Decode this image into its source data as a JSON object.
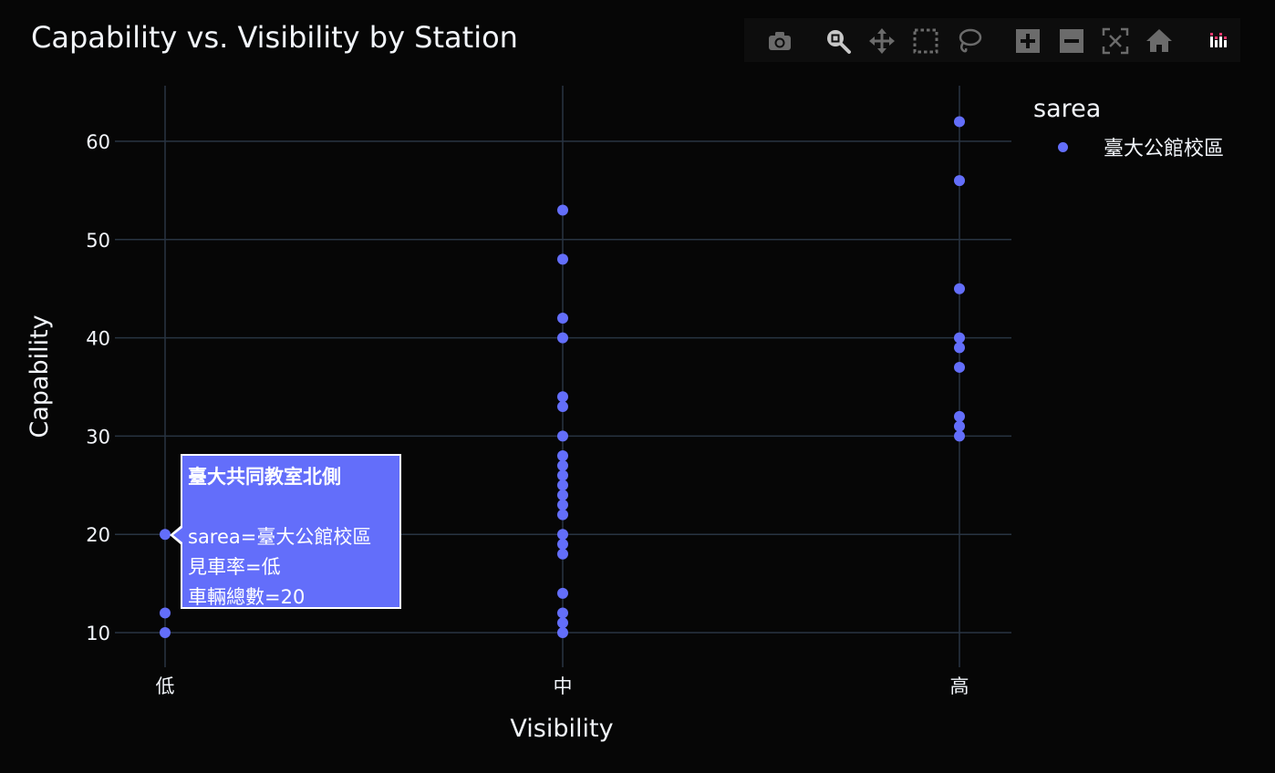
{
  "chart_data": {
    "type": "scatter",
    "title": "Capability vs. Visibility by Station",
    "xlabel": "Visibility",
    "ylabel": "Capability",
    "categories": [
      "低",
      "中",
      "高"
    ],
    "yticks": [
      10,
      20,
      30,
      40,
      50,
      60
    ],
    "grid": true,
    "legend_title": "sarea",
    "legend_position": "top-right",
    "series": [
      {
        "name": "臺大公館校區",
        "color": "#636efa",
        "points": [
          {
            "x": "低",
            "y": 20
          },
          {
            "x": "低",
            "y": 12
          },
          {
            "x": "低",
            "y": 10
          },
          {
            "x": "中",
            "y": 53
          },
          {
            "x": "中",
            "y": 48
          },
          {
            "x": "中",
            "y": 42
          },
          {
            "x": "中",
            "y": 40
          },
          {
            "x": "中",
            "y": 34
          },
          {
            "x": "中",
            "y": 33
          },
          {
            "x": "中",
            "y": 30
          },
          {
            "x": "中",
            "y": 28
          },
          {
            "x": "中",
            "y": 27
          },
          {
            "x": "中",
            "y": 26
          },
          {
            "x": "中",
            "y": 25
          },
          {
            "x": "中",
            "y": 24
          },
          {
            "x": "中",
            "y": 23
          },
          {
            "x": "中",
            "y": 22
          },
          {
            "x": "中",
            "y": 20
          },
          {
            "x": "中",
            "y": 19
          },
          {
            "x": "中",
            "y": 18
          },
          {
            "x": "中",
            "y": 14
          },
          {
            "x": "中",
            "y": 12
          },
          {
            "x": "中",
            "y": 11
          },
          {
            "x": "中",
            "y": 10
          },
          {
            "x": "高",
            "y": 62
          },
          {
            "x": "高",
            "y": 56
          },
          {
            "x": "高",
            "y": 45
          },
          {
            "x": "高",
            "y": 40
          },
          {
            "x": "高",
            "y": 39
          },
          {
            "x": "高",
            "y": 37
          },
          {
            "x": "高",
            "y": 32
          },
          {
            "x": "高",
            "y": 31
          },
          {
            "x": "高",
            "y": 30
          }
        ]
      }
    ]
  },
  "tooltip": {
    "title": "臺大共同教室北側",
    "line1": "sarea=臺大公館校區",
    "line2": "見車率=低",
    "line3": "車輛總數=20"
  },
  "modebar": {
    "buttons": [
      "camera-icon",
      "zoom-icon",
      "pan-icon",
      "box-select-icon",
      "lasso-select-icon",
      "zoom-in-icon",
      "zoom-out-icon",
      "autoscale-icon",
      "home-icon",
      "plotly-logo-icon"
    ]
  },
  "colors": {
    "background": "#060606",
    "grid": "#283442",
    "marker": "#636efa",
    "text": "#f2f5fa"
  }
}
